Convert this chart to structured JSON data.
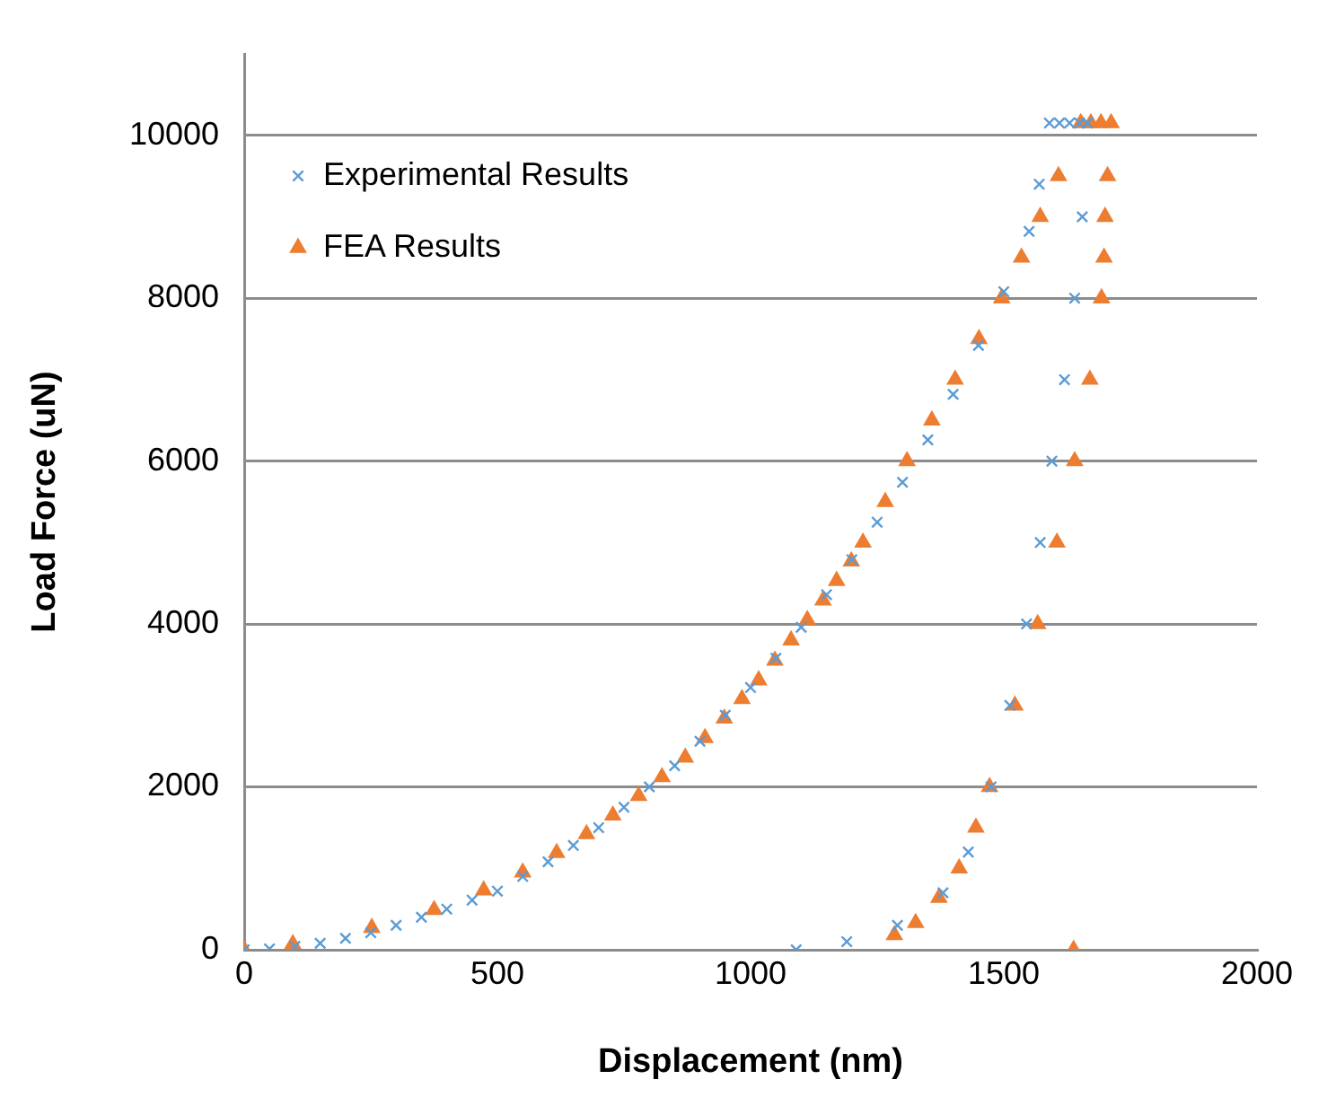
{
  "chart_data": {
    "type": "scatter",
    "xlabel": "Displacement (nm)",
    "ylabel": "Load Force (uN)",
    "xlim": [
      0,
      2000
    ],
    "xticks": [
      0,
      500,
      1000,
      1500,
      2000
    ],
    "ylim": [
      0,
      11000
    ],
    "yticks": [
      0,
      2000,
      4000,
      6000,
      8000,
      10000
    ],
    "grid": "y",
    "legend": "top left",
    "series": [
      {
        "name": "Experimental Results",
        "color": "#5b9bd5",
        "marker": "cross",
        "x": [
          0,
          50,
          100,
          150,
          200,
          250,
          300,
          350,
          400,
          450,
          500,
          550,
          600,
          650,
          700,
          750,
          800,
          850,
          900,
          950,
          1000,
          1050,
          1100,
          1150,
          1200,
          1250,
          1300,
          1350,
          1400,
          1450,
          1500,
          1550,
          1570,
          1590,
          1610,
          1630,
          1650,
          1665,
          1665,
          1655,
          1640,
          1620,
          1595,
          1572,
          1545,
          1512,
          1475,
          1430,
          1380,
          1290,
          1190,
          1090
        ],
        "values": [
          0,
          10,
          40,
          80,
          140,
          210,
          300,
          400,
          500,
          610,
          720,
          900,
          1080,
          1280,
          1500,
          1750,
          2000,
          2260,
          2560,
          2880,
          3220,
          3580,
          3960,
          4360,
          4790,
          5250,
          5740,
          6260,
          6820,
          7420,
          8080,
          8820,
          9400,
          10150,
          10150,
          10150,
          10150,
          10150,
          10150,
          9000,
          8000,
          7000,
          6000,
          5000,
          4000,
          3000,
          2000,
          1200,
          700,
          300,
          100,
          0
        ]
      },
      {
        "name": "FEA Results",
        "color": "#ed7d31",
        "marker": "triangle",
        "x": [
          0,
          96,
          252,
          375,
          473,
          550,
          617,
          676,
          728,
          779,
          825,
          871,
          910,
          948,
          983,
          1016,
          1048,
          1080,
          1112,
          1143,
          1170,
          1199,
          1222,
          1266,
          1309,
          1358,
          1404,
          1451,
          1496,
          1535,
          1572,
          1608,
          1652,
          1672,
          1692,
          1712,
          1705,
          1700,
          1698,
          1693,
          1670,
          1640,
          1605,
          1567,
          1522,
          1472,
          1445,
          1412,
          1372,
          1326,
          1284,
          1638
        ],
        "values": [
          0,
          70,
          270,
          490,
          730,
          950,
          1190,
          1420,
          1650,
          1890,
          2120,
          2360,
          2600,
          2840,
          3080,
          3310,
          3550,
          3800,
          4050,
          4290,
          4530,
          4770,
          5000,
          5500,
          6000,
          6500,
          7000,
          7500,
          8000,
          8500,
          9000,
          9500,
          10150,
          10150,
          10150,
          10150,
          9500,
          9000,
          8500,
          8000,
          7000,
          6000,
          5000,
          4000,
          3000,
          2000,
          1500,
          1000,
          640,
          330,
          180,
          0
        ]
      }
    ]
  }
}
